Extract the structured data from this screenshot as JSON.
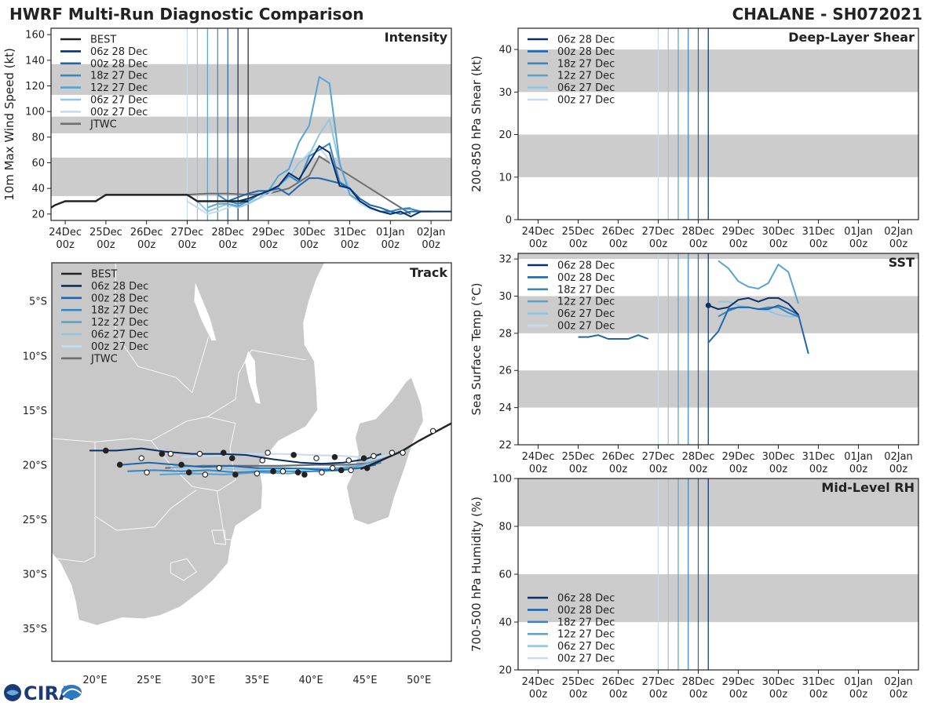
{
  "header": {
    "left_title": "HWRF Multi-Run Diagnostic Comparison",
    "right_title": "CHALANE - SH072021"
  },
  "logo_text": "CIRA",
  "run_colors": [
    "#08306b",
    "#1f66ad",
    "#3787c0",
    "#5aa2cf",
    "#93c4e2",
    "#c6dbef"
  ],
  "best_color": "#222222",
  "jtwc_color": "#6e6e6e",
  "time_axis": {
    "dates": [
      "24Dec",
      "25Dec",
      "26Dec",
      "27Dec",
      "28Dec",
      "29Dec",
      "30Dec",
      "31Dec",
      "01Jan",
      "02Jan"
    ],
    "hours": [
      "00z",
      "00z",
      "00z",
      "00z",
      "00z",
      "00z",
      "00z",
      "00z",
      "00z",
      "00z"
    ]
  },
  "chart_data": [
    {
      "id": "intensity",
      "type": "line",
      "title": "Intensity",
      "ylabel": "10m Max Wind Speed (kt)",
      "ylim": [
        15,
        165
      ],
      "yticks": [
        "20",
        "40",
        "60",
        "80",
        "100",
        "120",
        "140",
        "160"
      ],
      "xlim": [
        23.65,
        33.5
      ],
      "shaded_bands": [
        [
          34,
          64
        ],
        [
          83,
          96
        ],
        [
          113,
          137
        ]
      ],
      "legend": [
        "BEST",
        "06z 28 Dec",
        "00z 28 Dec",
        "18z 27 Dec",
        "12z 27 Dec",
        "06z 27 Dec",
        "00z 27 Dec",
        "JTWC"
      ],
      "vlines": [
        27.0,
        27.25,
        27.5,
        27.75,
        28.0,
        28.25,
        28.5
      ],
      "best": {
        "x": [
          23.65,
          23.75,
          24.0,
          24.25,
          24.5,
          24.75,
          25.0,
          25.25,
          25.5,
          25.75,
          26.0,
          26.25,
          26.5,
          26.75,
          27.0,
          27.25,
          27.5,
          27.75,
          28.0,
          28.25,
          28.5
        ],
        "y": [
          25,
          27,
          30,
          30,
          30,
          30,
          35,
          35,
          35,
          35,
          35,
          35,
          35,
          35,
          35,
          30,
          30,
          30,
          30,
          30,
          30
        ]
      },
      "series": [
        {
          "name": "06z 28 Dec",
          "x": [
            28.25,
            28.5,
            28.75,
            29.0,
            29.25,
            29.5,
            29.75,
            30.0,
            30.25,
            30.5,
            30.75,
            31.0,
            31.25,
            31.5,
            31.75,
            32.0,
            32.25,
            32.5,
            32.75,
            33.0,
            33.25,
            33.5
          ],
          "y": [
            30,
            32,
            35,
            38,
            42,
            52,
            47,
            60,
            73,
            68,
            42,
            40,
            30,
            25,
            22,
            20,
            22,
            18,
            22,
            22,
            22,
            22
          ]
        },
        {
          "name": "00z 28 Dec",
          "x": [
            28.0,
            28.25,
            28.5,
            28.75,
            29.0,
            29.25,
            29.5,
            29.75,
            30.0,
            30.25,
            30.5,
            30.75,
            31.0,
            31.25,
            31.5,
            31.75,
            32.0,
            32.25,
            32.5,
            32.75,
            33.0
          ],
          "y": [
            30,
            33,
            36,
            38,
            38,
            40,
            35,
            42,
            48,
            48,
            46,
            44,
            40,
            32,
            27,
            25,
            22,
            20,
            22,
            22,
            22
          ]
        },
        {
          "name": "18z 27 Dec",
          "x": [
            27.75,
            28.0,
            28.25,
            28.5,
            28.75,
            29.0,
            29.25,
            29.5,
            29.75,
            30.0,
            30.25,
            30.5,
            30.75,
            31.0,
            31.25,
            31.5,
            31.75,
            32.0,
            32.25,
            32.5,
            32.75
          ],
          "y": [
            35,
            30,
            28,
            30,
            35,
            38,
            42,
            50,
            45,
            65,
            70,
            75,
            45,
            40,
            30,
            25,
            22,
            22,
            24,
            24,
            22
          ]
        },
        {
          "name": "12z 27 Dec",
          "x": [
            27.5,
            27.75,
            28.0,
            28.25,
            28.5,
            28.75,
            29.0,
            29.25,
            29.5,
            29.75,
            30.0,
            30.25,
            30.5,
            30.75,
            31.0,
            31.25,
            31.5,
            31.75,
            32.0,
            32.25,
            32.5
          ],
          "y": [
            25,
            28,
            28,
            26,
            30,
            35,
            38,
            50,
            55,
            76,
            89,
            127,
            122,
            60,
            35,
            30,
            25,
            22,
            22,
            24,
            25
          ]
        },
        {
          "name": "06z 27 Dec",
          "x": [
            27.25,
            27.5,
            27.75,
            28.0,
            28.25,
            28.5,
            28.75,
            29.0,
            29.25,
            29.5,
            29.75,
            30.0,
            30.25,
            30.5,
            30.75,
            31.0,
            31.25,
            31.5,
            31.75,
            32.0,
            32.25
          ],
          "y": [
            30,
            22,
            25,
            28,
            25,
            28,
            32,
            38,
            42,
            48,
            60,
            66,
            82,
            94,
            58,
            40,
            30,
            25,
            22,
            20,
            22
          ]
        },
        {
          "name": "00z 27 Dec",
          "x": [
            27.0,
            27.25,
            27.5,
            27.75,
            28.0,
            28.25,
            28.5,
            28.75,
            29.0,
            29.25,
            29.5,
            29.75,
            30.0,
            30.25,
            30.5,
            30.75,
            31.0,
            31.25,
            31.5,
            31.75,
            32.0
          ],
          "y": [
            30,
            25,
            20,
            22,
            25,
            28,
            30,
            32,
            35,
            42,
            50,
            60,
            68,
            72,
            62,
            45,
            35,
            28,
            24,
            22,
            22
          ]
        }
      ],
      "jtwc": {
        "x": [
          27.0,
          27.5,
          28.0,
          28.5,
          29.0,
          29.5,
          30.0,
          30.25,
          30.5,
          31.0,
          31.5,
          32.0,
          32.5
        ],
        "y": [
          35,
          36,
          36,
          35,
          36,
          40,
          50,
          65,
          60,
          50,
          40,
          30,
          20
        ]
      }
    },
    {
      "id": "shear",
      "type": "line",
      "title": "Deep-Layer Shear",
      "ylabel": "200-850 hPa Shear (kt)",
      "ylim": [
        0,
        45
      ],
      "yticks": [
        "0",
        "10",
        "20",
        "30",
        "40"
      ],
      "xlim": [
        23.5,
        33.5
      ],
      "shaded_bands": [
        [
          10,
          20
        ],
        [
          30,
          40
        ]
      ],
      "legend": [
        "06z 28 Dec",
        "00z 28 Dec",
        "18z 27 Dec",
        "12z 27 Dec",
        "06z 27 Dec",
        "00z 27 Dec"
      ],
      "vlines": [
        27.0,
        27.25,
        27.5,
        27.75,
        28.0,
        28.25
      ],
      "series": []
    },
    {
      "id": "sst",
      "type": "line",
      "title": "SST",
      "ylabel": "Sea Surface Temp (°C)",
      "ylim": [
        22,
        32.3
      ],
      "yticks": [
        "22",
        "24",
        "26",
        "28",
        "30",
        "32"
      ],
      "xlim": [
        23.5,
        33.5
      ],
      "shaded_bands": [
        [
          24,
          26
        ],
        [
          28,
          30
        ],
        [
          32,
          33
        ]
      ],
      "legend": [
        "06z 28 Dec",
        "00z 28 Dec",
        "18z 27 Dec",
        "12z 27 Dec",
        "06z 27 Dec",
        "00z 27 Dec"
      ],
      "vlines": [
        27.0,
        27.25,
        27.5,
        27.75,
        28.0,
        28.25
      ],
      "series": [
        {
          "name": "06z 28 Dec",
          "x": [
            28.25,
            28.5,
            28.75,
            29.0,
            29.25,
            29.5,
            29.75,
            30.0,
            30.25,
            30.5
          ],
          "y": [
            29.5,
            29.3,
            29.4,
            29.8,
            29.9,
            29.7,
            29.9,
            29.9,
            29.6,
            29.0
          ],
          "marker_first": true
        },
        {
          "name": "00z 28 Dec",
          "x": [
            25.0,
            25.25,
            25.5,
            25.75,
            26.0,
            26.25,
            26.5,
            26.75
          ],
          "y": [
            27.8,
            27.8,
            27.9,
            27.7,
            27.7,
            27.7,
            27.9,
            27.7
          ]
        },
        {
          "name": "00z 28 Dec",
          "x": [
            28.25,
            28.5,
            28.75,
            29.0,
            29.25,
            29.5,
            29.75,
            30.0,
            30.25,
            30.5,
            30.75
          ],
          "y": [
            27.5,
            28.1,
            29.3,
            29.4,
            29.4,
            29.3,
            29.3,
            29.5,
            29.3,
            29.0,
            26.9
          ]
        },
        {
          "name": "18z 27 Dec",
          "x": [
            28.5,
            28.75,
            29.0,
            29.25,
            29.5,
            29.75,
            30.0,
            30.25,
            30.5
          ],
          "y": [
            28.9,
            29.2,
            29.4,
            29.4,
            29.3,
            29.4,
            29.4,
            29.1,
            28.9
          ]
        },
        {
          "name": "12z 27 Dec",
          "x": [
            28.5,
            28.75,
            29.0,
            29.25,
            29.5,
            29.75,
            30.0,
            30.25,
            30.5
          ],
          "y": [
            31.9,
            31.5,
            30.8,
            30.5,
            30.4,
            30.7,
            31.7,
            31.3,
            29.6
          ]
        },
        {
          "name": "06z 27 Dec",
          "x": [
            28.5,
            28.75,
            29.0,
            29.25,
            29.5,
            29.75,
            30.0,
            30.25,
            30.5
          ],
          "y": [
            29.7,
            29.7,
            29.5,
            29.4,
            29.3,
            29.2,
            29.0,
            28.9,
            28.9
          ]
        }
      ]
    },
    {
      "id": "rh",
      "type": "line",
      "title": "Mid-Level RH",
      "ylabel": "700-500 hPa Humidity (%)",
      "ylim": [
        20,
        100
      ],
      "yticks": [
        "20",
        "40",
        "60",
        "80",
        "100"
      ],
      "xlim": [
        23.5,
        33.5
      ],
      "shaded_bands": [
        [
          40,
          60
        ],
        [
          80,
          100
        ]
      ],
      "legend": [
        "06z 28 Dec",
        "00z 28 Dec",
        "18z 27 Dec",
        "12z 27 Dec",
        "06z 27 Dec",
        "00z 27 Dec"
      ],
      "vlines": [
        27.0,
        27.25,
        27.5,
        27.75,
        28.0,
        28.25
      ],
      "series": []
    },
    {
      "id": "track",
      "type": "line",
      "title": "Track",
      "xlim": [
        16,
        53
      ],
      "ylim": [
        -38,
        -1.5
      ],
      "xtick_values": [
        20,
        25,
        30,
        35,
        40,
        45,
        50
      ],
      "xticks": [
        "20°E",
        "25°E",
        "30°E",
        "35°E",
        "40°E",
        "45°E",
        "50°E"
      ],
      "ytick_values": [
        -5,
        -10,
        -15,
        -20,
        -25,
        -30,
        -35
      ],
      "yticks": [
        "5°S",
        "10°S",
        "15°S",
        "20°S",
        "25°S",
        "30°S",
        "35°S"
      ],
      "legend": [
        "BEST",
        "06z 28 Dec",
        "00z 28 Dec",
        "18z 27 Dec",
        "12z 27 Dec",
        "06z 27 Dec",
        "00z 27 Dec",
        "JTWC"
      ],
      "best": {
        "lon": [
          44.6,
          46.5,
          48.5,
          50.0,
          51.5,
          53.0
        ],
        "lat": [
          -20.4,
          -19.6,
          -18.7,
          -17.8,
          -17.0,
          -16.2
        ]
      },
      "series": [
        {
          "name": "06z 28 Dec",
          "lon": [
            19.5,
            22.0,
            24.3,
            26.5,
            29.0,
            31.5,
            34.0,
            36.5,
            39.0,
            41.0,
            43.0,
            45.0,
            46.5
          ],
          "lat": [
            -18.7,
            -18.7,
            -18.5,
            -18.8,
            -19.0,
            -19.0,
            -19.1,
            -19.5,
            -19.8,
            -19.9,
            -19.8,
            -19.5,
            -19.0
          ]
        },
        {
          "name": "00z 28 Dec",
          "lon": [
            22.5,
            25.0,
            27.5,
            30.0,
            32.5,
            35.0,
            37.5,
            40.0,
            42.5,
            44.5,
            46.0
          ],
          "lat": [
            -20.0,
            -19.8,
            -20.0,
            -20.2,
            -20.1,
            -20.3,
            -20.3,
            -20.4,
            -20.5,
            -20.3,
            -20.0
          ]
        },
        {
          "name": "18z 27 Dec",
          "lon": [
            23.0,
            25.5,
            28.0,
            30.5,
            33.0,
            35.5,
            38.0,
            40.5,
            43.0,
            45.0,
            46.5
          ],
          "lat": [
            -20.6,
            -20.5,
            -20.6,
            -20.5,
            -20.7,
            -20.6,
            -20.6,
            -20.6,
            -20.5,
            -20.2,
            -19.8
          ]
        },
        {
          "name": "12z 27 Dec",
          "lon": [
            26.0,
            29.0,
            32.0,
            35.0,
            38.0,
            41.0,
            44.0,
            46.5,
            48.5
          ],
          "lat": [
            -20.9,
            -20.8,
            -20.9,
            -20.7,
            -20.8,
            -20.5,
            -20.2,
            -19.5,
            -18.8
          ]
        },
        {
          "name": "06z 27 Dec",
          "lon": [
            27.0,
            30.0,
            33.0,
            36.0,
            39.0,
            42.0,
            45.0,
            47.5,
            49.0
          ],
          "lat": [
            -20.3,
            -20.2,
            -20.4,
            -20.5,
            -20.3,
            -20.3,
            -20.0,
            -19.2,
            -18.5
          ]
        },
        {
          "name": "00z 27 Dec",
          "lon": [
            28.0,
            31.0,
            34.0,
            37.0,
            40.0,
            43.0,
            46.0,
            48.0
          ],
          "lat": [
            -19.3,
            -19.2,
            -19.0,
            -19.0,
            -19.1,
            -19.2,
            -19.4,
            -18.9
          ]
        }
      ],
      "jtwc": {
        "lon": [
          26.5,
          30.0,
          33.5,
          37.0,
          40.5,
          43.5,
          46.0
        ],
        "lat": [
          -20.3,
          -20.1,
          -20.1,
          -20.1,
          -20.0,
          -20.0,
          -19.8
        ]
      },
      "dots_black": [
        [
          21.0,
          -18.7
        ],
        [
          22.3,
          -20.0
        ],
        [
          26.2,
          -19.0
        ],
        [
          28.0,
          -20.0
        ],
        [
          28.7,
          -20.7
        ],
        [
          31.9,
          -18.9
        ],
        [
          32.7,
          -19.4
        ],
        [
          33.0,
          -20.9
        ],
        [
          36.5,
          -20.6
        ],
        [
          38.4,
          -19.1
        ],
        [
          38.8,
          -20.7
        ],
        [
          39.4,
          -20.9
        ],
        [
          42.2,
          -19.3
        ],
        [
          42.8,
          -20.5
        ],
        [
          44.9,
          -19.4
        ],
        [
          45.2,
          -20.3
        ]
      ],
      "dots_white": [
        [
          24.3,
          -19.4
        ],
        [
          24.8,
          -20.7
        ],
        [
          27.0,
          -19.0
        ],
        [
          29.7,
          -19.0
        ],
        [
          30.2,
          -20.9
        ],
        [
          31.5,
          -20.3
        ],
        [
          35.0,
          -20.8
        ],
        [
          35.5,
          -19.6
        ],
        [
          36.0,
          -18.9
        ],
        [
          37.4,
          -20.6
        ],
        [
          40.5,
          -19.4
        ],
        [
          41.0,
          -20.7
        ],
        [
          42.0,
          -20.3
        ],
        [
          43.5,
          -19.6
        ],
        [
          43.7,
          -20.5
        ],
        [
          45.8,
          -19.2
        ],
        [
          47.5,
          -18.9
        ],
        [
          48.5,
          -18.9
        ],
        [
          51.3,
          -16.9
        ]
      ]
    }
  ]
}
